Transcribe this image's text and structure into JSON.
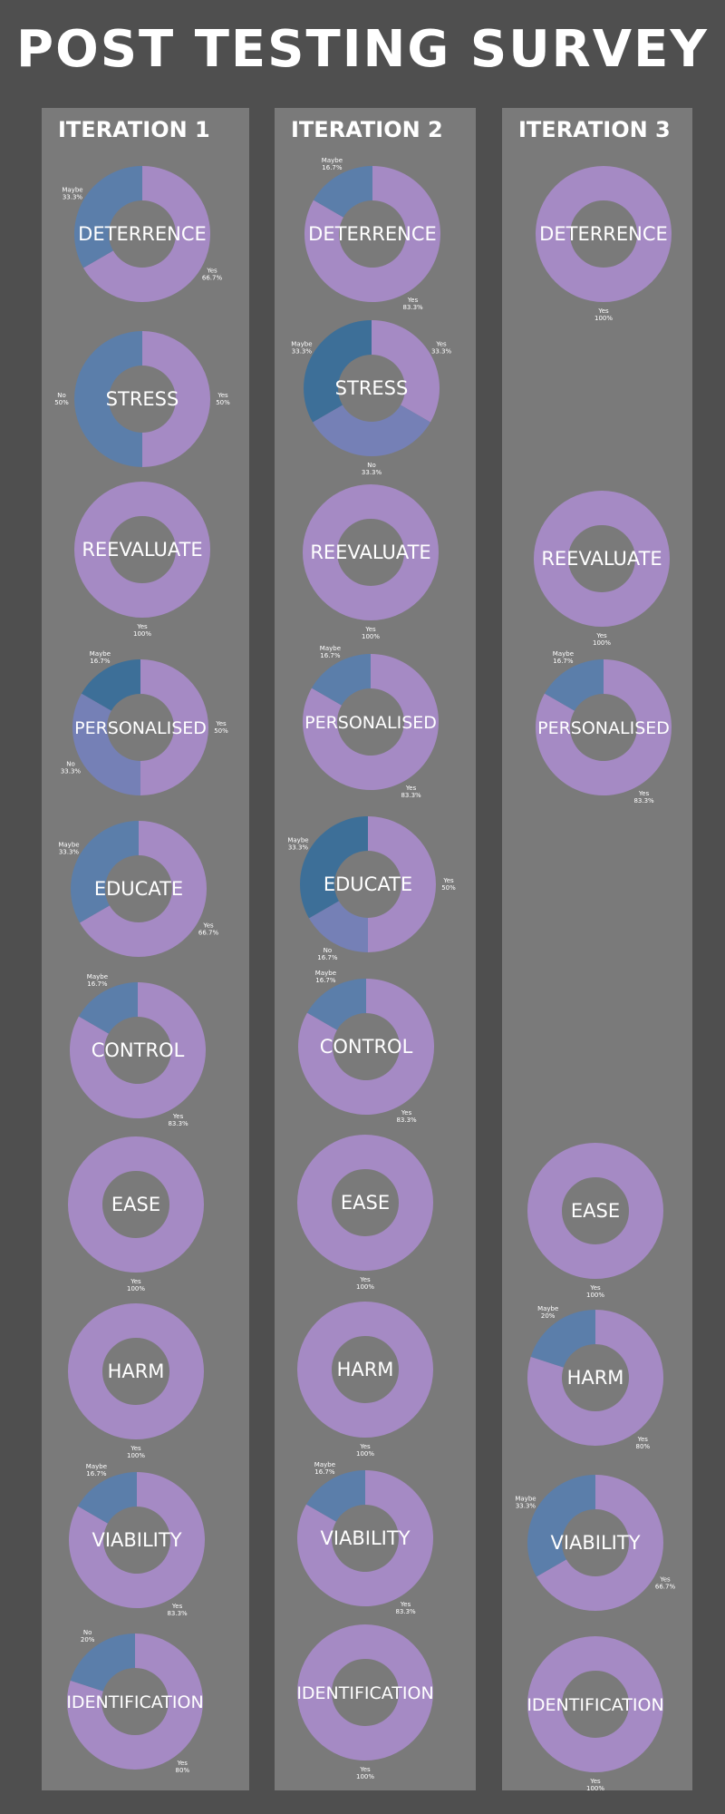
{
  "title": "POST TESTING SURVEY",
  "colors": {
    "Yes": "#a58ac4",
    "Maybe": "#5b7eaa",
    "No": "#7580b6",
    "Maybe_alt": "#3d6f98",
    "background": "#4f4f4f",
    "panel": "#7a7a7a",
    "hole": "#7a7a7a"
  },
  "columns": [
    {
      "title": "ITERATION 1"
    },
    {
      "title": "ITERATION 2"
    },
    {
      "title": "ITERATION 3"
    }
  ],
  "chart_data": [
    {
      "type": "pie",
      "iteration": "ITERATION 1",
      "title": "DETERRENCE",
      "slices": [
        {
          "name": "Yes",
          "value": 66.7,
          "label": "66.7%"
        },
        {
          "name": "Maybe",
          "value": 33.3,
          "label": "33.3%"
        }
      ]
    },
    {
      "type": "pie",
      "iteration": "ITERATION 1",
      "title": "STRESS",
      "slices": [
        {
          "name": "Yes",
          "value": 50,
          "label": "50%"
        },
        {
          "name": "No",
          "value": 50,
          "label": "50%",
          "color": "#5b7eaa"
        }
      ]
    },
    {
      "type": "pie",
      "iteration": "ITERATION 1",
      "title": "REEVALUATE",
      "slices": [
        {
          "name": "Yes",
          "value": 100,
          "label": "100%"
        }
      ]
    },
    {
      "type": "pie",
      "iteration": "ITERATION 1",
      "title": "PERSONALISED",
      "slices": [
        {
          "name": "Yes",
          "value": 50,
          "label": "50%"
        },
        {
          "name": "No",
          "value": 33.3,
          "label": "33.3%"
        },
        {
          "name": "Maybe",
          "value": 16.7,
          "label": "16.7%",
          "color": "#3d6f98"
        }
      ]
    },
    {
      "type": "pie",
      "iteration": "ITERATION 1",
      "title": "EDUCATE",
      "slices": [
        {
          "name": "Yes",
          "value": 66.7,
          "label": "66.7%"
        },
        {
          "name": "Maybe",
          "value": 33.3,
          "label": "33.3%"
        }
      ]
    },
    {
      "type": "pie",
      "iteration": "ITERATION 1",
      "title": "CONTROL",
      "slices": [
        {
          "name": "Yes",
          "value": 83.3,
          "label": "83.3%"
        },
        {
          "name": "Maybe",
          "value": 16.7,
          "label": "16.7%"
        }
      ]
    },
    {
      "type": "pie",
      "iteration": "ITERATION 1",
      "title": "EASE",
      "slices": [
        {
          "name": "Yes",
          "value": 100,
          "label": "100%"
        }
      ]
    },
    {
      "type": "pie",
      "iteration": "ITERATION 1",
      "title": "HARM",
      "slices": [
        {
          "name": "Yes",
          "value": 100,
          "label": "100%"
        }
      ]
    },
    {
      "type": "pie",
      "iteration": "ITERATION 1",
      "title": "VIABILITY",
      "slices": [
        {
          "name": "Yes",
          "value": 83.3,
          "label": "83.3%"
        },
        {
          "name": "Maybe",
          "value": 16.7,
          "label": "16.7%"
        }
      ]
    },
    {
      "type": "pie",
      "iteration": "ITERATION 1",
      "title": "IDENTIFICATION",
      "slices": [
        {
          "name": "Yes",
          "value": 80,
          "label": "80%"
        },
        {
          "name": "No",
          "value": 20,
          "label": "20%",
          "color": "#5b7eaa"
        }
      ]
    },
    {
      "type": "pie",
      "iteration": "ITERATION 2",
      "title": "DETERRENCE",
      "slices": [
        {
          "name": "Yes",
          "value": 83.3,
          "label": "83.3%"
        },
        {
          "name": "Maybe",
          "value": 16.7,
          "label": "16.7%"
        }
      ]
    },
    {
      "type": "pie",
      "iteration": "ITERATION 2",
      "title": "STRESS",
      "slices": [
        {
          "name": "Yes",
          "value": 33.3,
          "label": "33.3%"
        },
        {
          "name": "No",
          "value": 33.3,
          "label": "33.3%"
        },
        {
          "name": "Maybe",
          "value": 33.3,
          "label": "33.3%",
          "color": "#3d6f98"
        }
      ]
    },
    {
      "type": "pie",
      "iteration": "ITERATION 2",
      "title": "REEVALUATE",
      "slices": [
        {
          "name": "Yes",
          "value": 100,
          "label": "100%"
        }
      ]
    },
    {
      "type": "pie",
      "iteration": "ITERATION 2",
      "title": "PERSONALISED",
      "slices": [
        {
          "name": "Yes",
          "value": 83.3,
          "label": "83.3%"
        },
        {
          "name": "Maybe",
          "value": 16.7,
          "label": "16.7%"
        }
      ]
    },
    {
      "type": "pie",
      "iteration": "ITERATION 2",
      "title": "EDUCATE",
      "slices": [
        {
          "name": "Yes",
          "value": 50,
          "label": "50%"
        },
        {
          "name": "No",
          "value": 16.7,
          "label": "16.7%"
        },
        {
          "name": "Maybe",
          "value": 33.3,
          "label": "33.3%",
          "color": "#3d6f98"
        }
      ]
    },
    {
      "type": "pie",
      "iteration": "ITERATION 2",
      "title": "CONTROL",
      "slices": [
        {
          "name": "Yes",
          "value": 83.3,
          "label": "83.3%"
        },
        {
          "name": "Maybe",
          "value": 16.7,
          "label": "16.7%"
        }
      ]
    },
    {
      "type": "pie",
      "iteration": "ITERATION 2",
      "title": "EASE",
      "slices": [
        {
          "name": "Yes",
          "value": 100,
          "label": "100%"
        }
      ]
    },
    {
      "type": "pie",
      "iteration": "ITERATION 2",
      "title": "HARM",
      "slices": [
        {
          "name": "Yes",
          "value": 100,
          "label": "100%"
        }
      ]
    },
    {
      "type": "pie",
      "iteration": "ITERATION 2",
      "title": "VIABILITY",
      "slices": [
        {
          "name": "Yes",
          "value": 83.3,
          "label": "83.3%"
        },
        {
          "name": "Maybe",
          "value": 16.7,
          "label": "16.7%"
        }
      ]
    },
    {
      "type": "pie",
      "iteration": "ITERATION 2",
      "title": "IDENTIFICATION",
      "slices": [
        {
          "name": "Yes",
          "value": 100,
          "label": "100%"
        }
      ]
    },
    {
      "type": "pie",
      "iteration": "ITERATION 3",
      "title": "DETERRENCE",
      "slices": [
        {
          "name": "Yes",
          "value": 100,
          "label": "100%"
        }
      ]
    },
    {
      "type": "pie",
      "iteration": "ITERATION 3",
      "title": "REEVALUATE",
      "slices": [
        {
          "name": "Yes",
          "value": 100,
          "label": "100%"
        }
      ]
    },
    {
      "type": "pie",
      "iteration": "ITERATION 3",
      "title": "PERSONALISED",
      "slices": [
        {
          "name": "Yes",
          "value": 83.3,
          "label": "83.3%"
        },
        {
          "name": "Maybe",
          "value": 16.7,
          "label": "16.7%"
        }
      ]
    },
    {
      "type": "pie",
      "iteration": "ITERATION 3",
      "title": "EASE",
      "slices": [
        {
          "name": "Yes",
          "value": 100,
          "label": "100%"
        }
      ]
    },
    {
      "type": "pie",
      "iteration": "ITERATION 3",
      "title": "HARM",
      "slices": [
        {
          "name": "Yes",
          "value": 80,
          "label": "80%"
        },
        {
          "name": "Maybe",
          "value": 20,
          "label": "20%"
        }
      ]
    },
    {
      "type": "pie",
      "iteration": "ITERATION 3",
      "title": "VIABILITY",
      "slices": [
        {
          "name": "Yes",
          "value": 66.7,
          "label": "66.7%"
        },
        {
          "name": "Maybe",
          "value": 33.3,
          "label": "33.3%"
        }
      ]
    },
    {
      "type": "pie",
      "iteration": "ITERATION 3",
      "title": "IDENTIFICATION",
      "slices": [
        {
          "name": "Yes",
          "value": 100,
          "label": "100%"
        }
      ]
    }
  ]
}
